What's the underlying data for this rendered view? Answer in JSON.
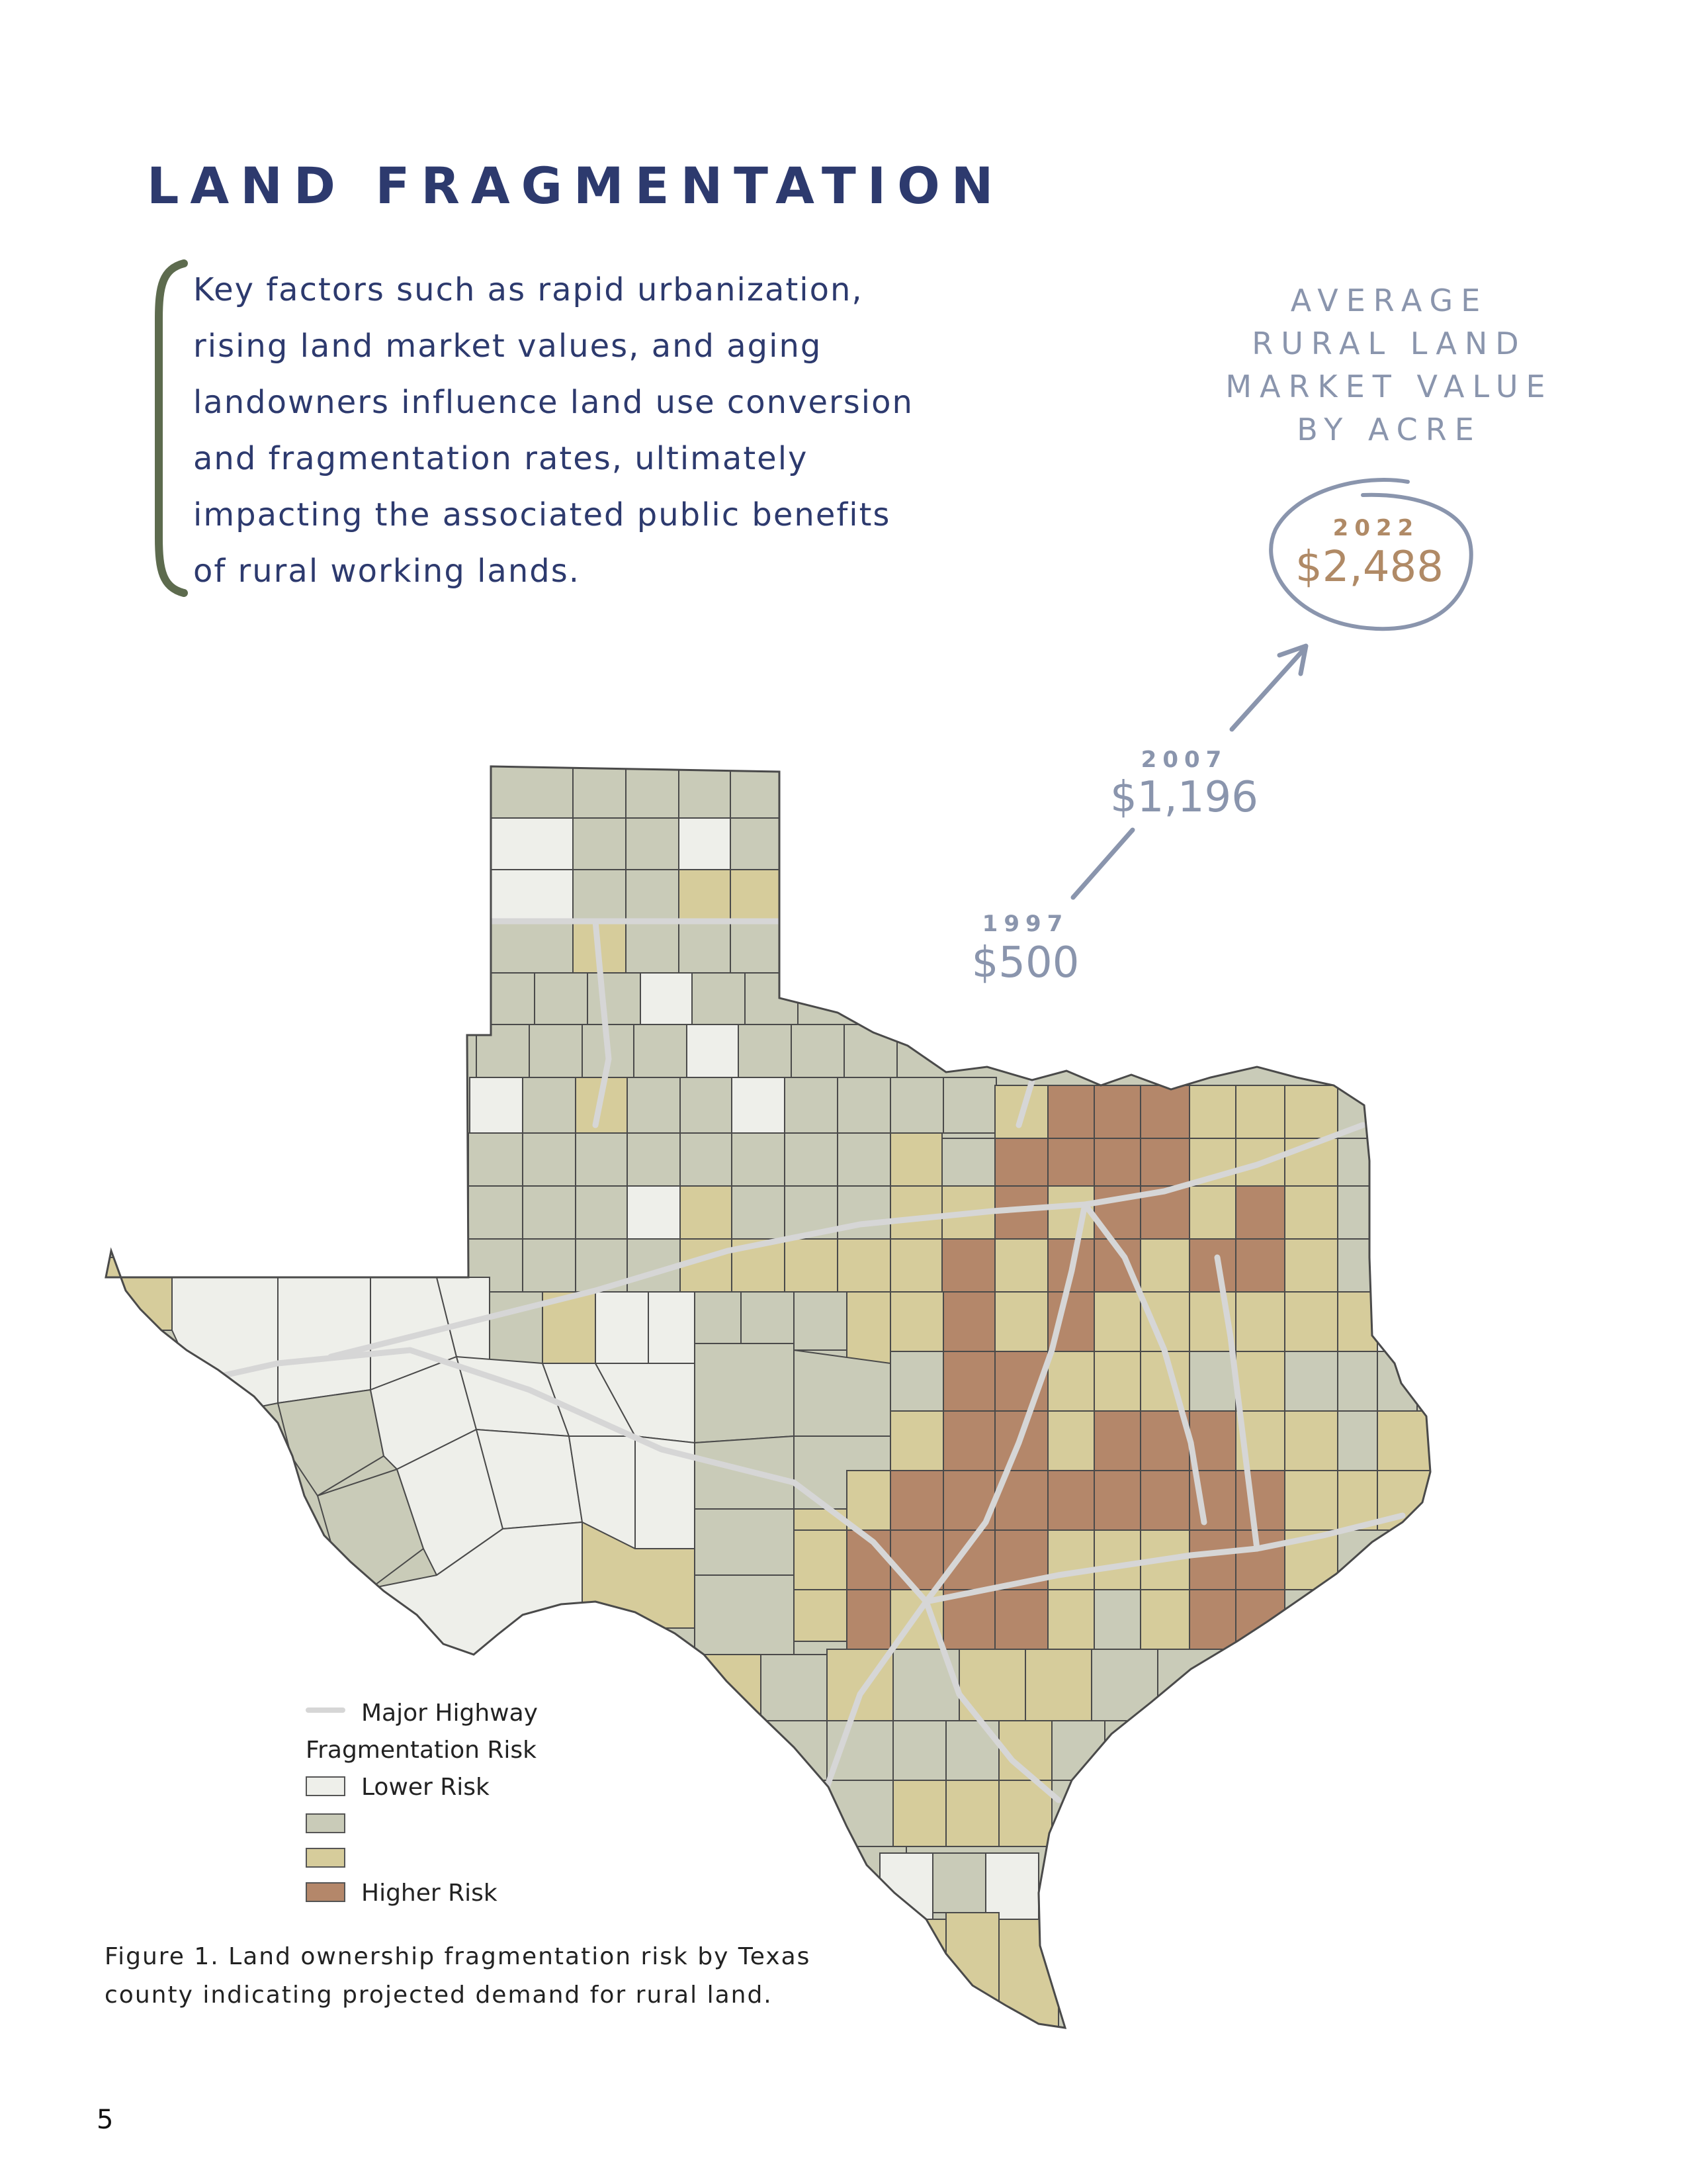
{
  "page": {
    "title": "LAND FRAGMENTATION",
    "intro_lines": [
      "Key factors such as rapid urbanization,",
      "rising land market values, and aging",
      "landowners influence land use conversion",
      "and fragmentation rates, ultimately",
      "impacting the associated public benefits",
      "of rural working lands."
    ],
    "page_number": "5"
  },
  "stats": {
    "heading_lines": [
      "AVERAGE",
      "RURAL LAND",
      "MARKET VALUE",
      "BY ACRE"
    ],
    "points": [
      {
        "year": "1997",
        "value": "$500"
      },
      {
        "year": "2007",
        "value": "$1,196"
      },
      {
        "year": "2022",
        "value": "$2,488"
      }
    ]
  },
  "map": {
    "legend": {
      "highway_label": "Major Highway",
      "heading": "Fragmentation Risk",
      "classes": [
        {
          "label": "Lower Risk",
          "color": "#eeefea"
        },
        {
          "label": "",
          "color": "#c9cbb8"
        },
        {
          "label": "",
          "color": "#d6cc9b"
        },
        {
          "label": "Higher Risk",
          "color": "#b4876a"
        }
      ]
    },
    "caption_lines": [
      "Figure 1. Land ownership fragmentation risk by Texas",
      "county indicating projected demand for rural land."
    ],
    "colors": {
      "lower": "#eeefea",
      "low_mid": "#c9cbb8",
      "high_mid": "#d6cc9b",
      "higher": "#b4876a",
      "highway": "#d6d6d6",
      "county_border": "#4a4a4a",
      "title": "#2d3a6e",
      "stat": "#8a95ad",
      "accent": "#b08a66",
      "bracket": "#5d6b4e"
    }
  }
}
